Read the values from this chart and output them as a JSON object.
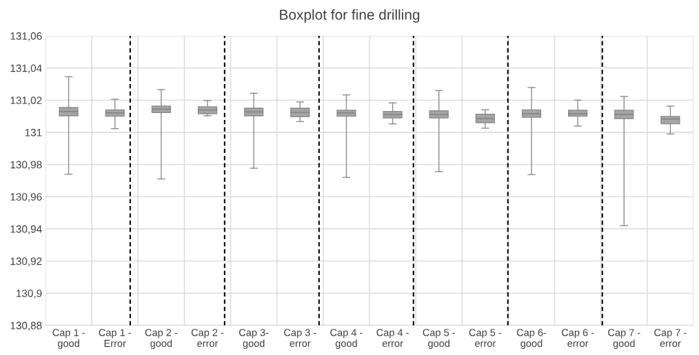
{
  "chart_data": {
    "type": "box",
    "title": "Boxplot for fine drilling",
    "categories": [
      "Cap 1 -\ngood",
      "Cap 1 -\nError",
      "Cap 2 -\ngood",
      "Cap 2 -\nerror",
      "Cap 3-\ngood",
      "Cap 3 -\nerror",
      "Cap 4 -\ngood",
      "Cap 4 -\nerror",
      "Cap 5 -\ngood",
      "Cap 5 -\nerror",
      "Cap 6-\ngood",
      "Cap 6 -\nerror",
      "Cap 7 -\ngood",
      "Cap 7 -\nerror"
    ],
    "color": "#a5a5a5",
    "boxes": [
      {
        "low": 130.974,
        "q1": 131.0103,
        "median": 131.0129,
        "q3": 131.0154,
        "high": 131.0346
      },
      {
        "low": 131.0023,
        "q1": 131.01,
        "median": 131.0121,
        "q3": 131.014,
        "high": 131.0206
      },
      {
        "low": 130.971,
        "q1": 131.0123,
        "median": 131.0144,
        "q3": 131.0163,
        "high": 131.0266
      },
      {
        "low": 131.0103,
        "q1": 131.0116,
        "median": 131.0139,
        "q3": 131.0159,
        "high": 131.0197
      },
      {
        "low": 130.9777,
        "q1": 131.0103,
        "median": 131.0127,
        "q3": 131.015,
        "high": 131.0243
      },
      {
        "low": 131.0067,
        "q1": 131.0097,
        "median": 131.0124,
        "q3": 131.015,
        "high": 131.0189
      },
      {
        "low": 130.972,
        "q1": 131.01,
        "median": 131.012,
        "q3": 131.0137,
        "high": 131.0233
      },
      {
        "low": 131.0053,
        "q1": 131.009,
        "median": 131.011,
        "q3": 131.013,
        "high": 131.0183
      },
      {
        "low": 130.9756,
        "q1": 131.009,
        "median": 131.0111,
        "q3": 131.0134,
        "high": 131.026
      },
      {
        "low": 131.0026,
        "q1": 131.006,
        "median": 131.0086,
        "q3": 131.0113,
        "high": 131.014
      },
      {
        "low": 130.9737,
        "q1": 131.0094,
        "median": 131.0116,
        "q3": 131.014,
        "high": 131.0279
      },
      {
        "low": 131.0039,
        "q1": 131.01,
        "median": 131.0116,
        "q3": 131.0137,
        "high": 131.02
      },
      {
        "low": 130.942,
        "q1": 131.0086,
        "median": 131.0111,
        "q3": 131.0137,
        "high": 131.0223
      },
      {
        "low": 130.999,
        "q1": 131.0053,
        "median": 131.0083,
        "q3": 131.0099,
        "high": 131.0163
      }
    ],
    "ylim": [
      130.88,
      131.06
    ],
    "yticks": [
      {
        "value": 130.88,
        "label": "130,88"
      },
      {
        "value": 130.9,
        "label": "130,9"
      },
      {
        "value": 130.92,
        "label": "130,92"
      },
      {
        "value": 130.94,
        "label": "130,94"
      },
      {
        "value": 130.96,
        "label": "130,96"
      },
      {
        "value": 130.98,
        "label": "130,98"
      },
      {
        "value": 131,
        "label": "131"
      },
      {
        "value": 131.02,
        "label": "131,02"
      },
      {
        "value": 131.04,
        "label": "131,04"
      },
      {
        "value": 131.06,
        "label": "131,06"
      }
    ],
    "grid": true
  }
}
